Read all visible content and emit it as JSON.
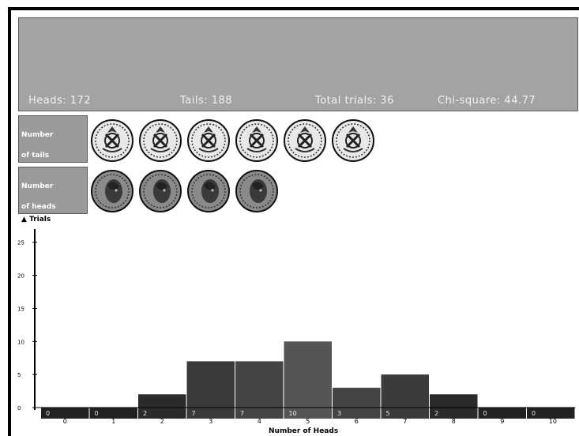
{
  "stats": {
    "heads": "Heads: 172",
    "tails": "Tails: 188",
    "total_trials": "Total trials: 36",
    "chi_squared": "Chi-square: 44.77"
  },
  "rows": {
    "tails_label_line1": "Number",
    "tails_label_line2": "of tails",
    "heads_label_line1": "Number",
    "heads_label_line2": "of heads"
  },
  "coins": {
    "tails_count": 6,
    "heads_count": 4
  },
  "chart_data": {
    "type": "bar",
    "categories": [
      "0",
      "1",
      "2",
      "3",
      "4",
      "5",
      "6",
      "7",
      "8",
      "9",
      "10"
    ],
    "values": [
      0,
      0,
      2,
      7,
      7,
      10,
      3,
      5,
      2,
      0,
      0
    ],
    "count_labels": [
      "0",
      "0",
      "2",
      "7",
      "7",
      "10",
      "3",
      "5",
      "2",
      "0",
      "0"
    ],
    "ylabel": "Trials",
    "xlabel": "Number of Heads",
    "yticks": [
      "0",
      "5",
      "10",
      "15",
      "20",
      "25"
    ],
    "ylim": [
      0,
      27
    ],
    "colors": [
      "#222222",
      "#222222",
      "#2b2b2b",
      "#3a3a3a",
      "#444444",
      "#555555",
      "#444444",
      "#3b3b3b",
      "#2a2a2a",
      "#222222",
      "#222222"
    ]
  }
}
